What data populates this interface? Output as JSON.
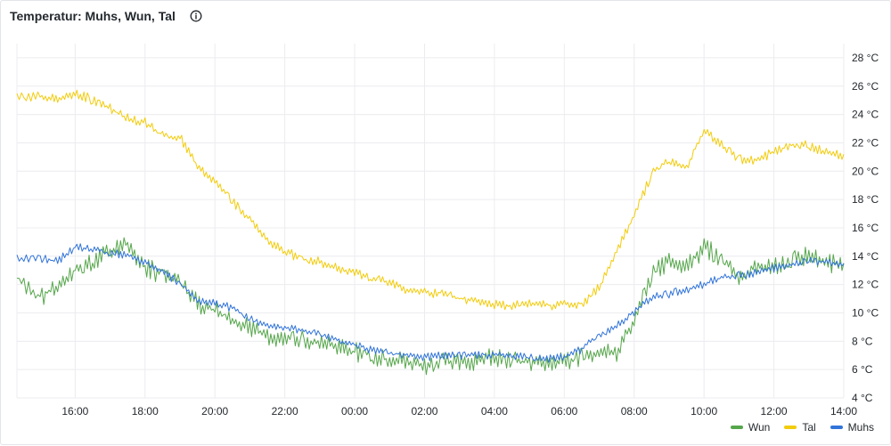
{
  "panel": {
    "title": "Temperatur: Muhs, Wun, Tal",
    "info_icon": "info-circle-icon"
  },
  "colors": {
    "Wun": "#56a64b",
    "Tal": "#f2cc0c",
    "Muhs": "#3274d9",
    "grid": "#ececf0",
    "text": "#24292e"
  },
  "chart_data": {
    "type": "line",
    "x_unit": "time (HH:MM)",
    "xlim": [
      "14:20",
      "14:00 (next day)"
    ],
    "x_ticks": [
      "16:00",
      "18:00",
      "20:00",
      "22:00",
      "00:00",
      "02:00",
      "04:00",
      "06:00",
      "08:00",
      "10:00",
      "12:00",
      "14:00"
    ],
    "ylim": [
      4,
      29
    ],
    "y_ticks": [
      "4 °C",
      "6 °C",
      "8 °C",
      "10 °C",
      "12 °C",
      "14 °C",
      "16 °C",
      "18 °C",
      "20 °C",
      "22 °C",
      "24 °C",
      "26 °C",
      "28 °C"
    ],
    "y_tick_values": [
      4,
      6,
      8,
      10,
      12,
      14,
      16,
      18,
      20,
      22,
      24,
      26,
      28
    ],
    "y_axis_side": "right",
    "grid": true,
    "legend_position": "bottom-right",
    "x": [
      "14:20",
      "15:00",
      "15:30",
      "16:00",
      "16:30",
      "17:00",
      "17:30",
      "18:00",
      "18:30",
      "19:00",
      "19:30",
      "20:00",
      "20:30",
      "21:00",
      "21:30",
      "22:00",
      "22:30",
      "23:00",
      "23:30",
      "00:00",
      "00:30",
      "01:00",
      "01:30",
      "02:00",
      "02:30",
      "03:00",
      "03:30",
      "04:00",
      "04:30",
      "05:00",
      "05:30",
      "06:00",
      "06:30",
      "07:00",
      "07:30",
      "08:00",
      "08:30",
      "09:00",
      "09:30",
      "10:00",
      "10:30",
      "11:00",
      "11:30",
      "12:00",
      "12:30",
      "13:00",
      "13:30",
      "14:00"
    ],
    "series": [
      {
        "name": "Wun",
        "color": "#56a64b",
        "values": [
          12.8,
          11.5,
          12.2,
          13.5,
          14.0,
          14.8,
          15.2,
          13.6,
          13.0,
          12.5,
          11.0,
          10.5,
          10.0,
          9.3,
          8.7,
          8.5,
          8.4,
          8.2,
          7.9,
          7.6,
          7.3,
          7.0,
          6.9,
          6.5,
          6.9,
          6.8,
          7.0,
          7.2,
          7.0,
          6.9,
          6.8,
          7.0,
          7.2,
          7.4,
          7.6,
          9.8,
          13.0,
          14.0,
          13.5,
          15.0,
          14.2,
          13.0,
          13.5,
          13.5,
          14.0,
          14.5,
          14.0,
          13.5
        ]
      },
      {
        "name": "Tal",
        "color": "#f2cc0c",
        "values": [
          25.4,
          25.5,
          25.3,
          25.7,
          25.2,
          24.6,
          23.9,
          23.6,
          22.7,
          22.6,
          20.5,
          19.5,
          18.0,
          16.8,
          15.2,
          14.5,
          14.0,
          13.8,
          13.3,
          13.0,
          12.6,
          12.3,
          11.8,
          11.6,
          11.5,
          11.2,
          11.0,
          10.8,
          10.7,
          10.8,
          10.7,
          10.8,
          10.6,
          12.0,
          14.5,
          17.0,
          20.0,
          21.0,
          20.5,
          23.0,
          22.0,
          21.0,
          21.0,
          21.5,
          22.0,
          22.0,
          21.5,
          21.2
        ]
      },
      {
        "name": "Muhs",
        "color": "#3274d9",
        "values": [
          14.0,
          14.0,
          13.8,
          14.8,
          14.6,
          14.4,
          14.2,
          13.7,
          13.0,
          12.2,
          11.0,
          10.8,
          10.5,
          9.8,
          9.3,
          9.1,
          8.9,
          8.6,
          8.2,
          7.9,
          7.5,
          7.3,
          7.2,
          7.0,
          7.2,
          7.1,
          7.2,
          7.2,
          7.1,
          7.0,
          6.9,
          7.0,
          7.6,
          8.6,
          9.3,
          10.2,
          11.2,
          11.5,
          11.8,
          12.2,
          12.6,
          12.8,
          13.0,
          13.3,
          13.6,
          13.8,
          13.7,
          13.5
        ]
      }
    ]
  },
  "legend": {
    "items": [
      {
        "label": "Wun"
      },
      {
        "label": "Tal"
      },
      {
        "label": "Muhs"
      }
    ]
  }
}
